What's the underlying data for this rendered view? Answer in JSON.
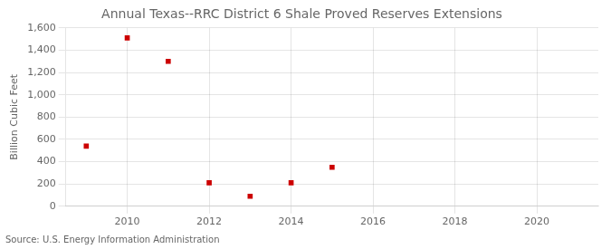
{
  "chart_data": {
    "type": "scatter",
    "title": "Annual Texas--RRC District 6 Shale Proved Reserves Extensions",
    "ylabel": "Billion Cubic Feet",
    "source": "Source: U.S. Energy Information Administration",
    "x": [
      2009,
      2010,
      2011,
      2012,
      2013,
      2014,
      2015
    ],
    "values": [
      540,
      1510,
      1300,
      210,
      90,
      210,
      350
    ],
    "color": "#cc0000",
    "marker": "square",
    "xlim": [
      2008.5,
      2021.5
    ],
    "ylim": [
      0,
      1600
    ],
    "xticks": [
      2010,
      2012,
      2014,
      2016,
      2018,
      2020
    ],
    "yticks": [
      0,
      200,
      400,
      600,
      800,
      {
        "value": 1000,
        "label": "1,000"
      },
      {
        "value": 1200,
        "label": "1,200"
      },
      {
        "value": 1400,
        "label": "1,400"
      },
      {
        "value": 1600,
        "label": "1,600"
      }
    ],
    "grid": true
  }
}
